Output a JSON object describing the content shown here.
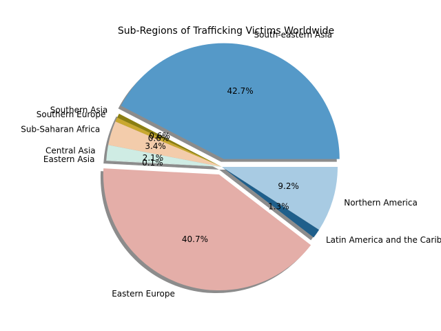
{
  "chart_data": {
    "type": "pie",
    "title": "Sub-Regions of Trafficking Victims Worldwide",
    "start_angle_deg": 0,
    "direction": "counterclockwise",
    "shadow": true,
    "slices": [
      {
        "label": "South-eastern Asia",
        "value": 42.7,
        "pct_text": "42.7%",
        "color": "#5599c8",
        "explode": true
      },
      {
        "label": "Southern Asia",
        "value": 0.6,
        "pct_text": "0.6%",
        "color": "#8a7e12",
        "explode": false
      },
      {
        "label": "Southern Europe",
        "value": 0.6,
        "pct_text": "0.6%",
        "color": "#c9a830",
        "explode": false
      },
      {
        "label": "Sub-Saharan Africa",
        "value": 3.4,
        "pct_text": "3.4%",
        "color": "#f3ccab",
        "explode": false
      },
      {
        "label": "Central Asia",
        "value": 2.1,
        "pct_text": "2.1%",
        "color": "#cfece4",
        "explode": false
      },
      {
        "label": "Eastern Asia",
        "value": 0.1,
        "pct_text": "0.1%",
        "color": "#d8efe8",
        "explode": false
      },
      {
        "label": "Eastern Europe",
        "value": 40.7,
        "pct_text": "40.7%",
        "color": "#e4aea8",
        "explode": true
      },
      {
        "label": "Latin America and the Caribbean",
        "value": 1.3,
        "pct_text": "1.3%",
        "color": "#1f5f8b",
        "explode": false
      },
      {
        "label": "Northern America",
        "value": 9.2,
        "pct_text": "9.2%",
        "color": "#a8cbe3",
        "explode": false
      }
    ]
  }
}
